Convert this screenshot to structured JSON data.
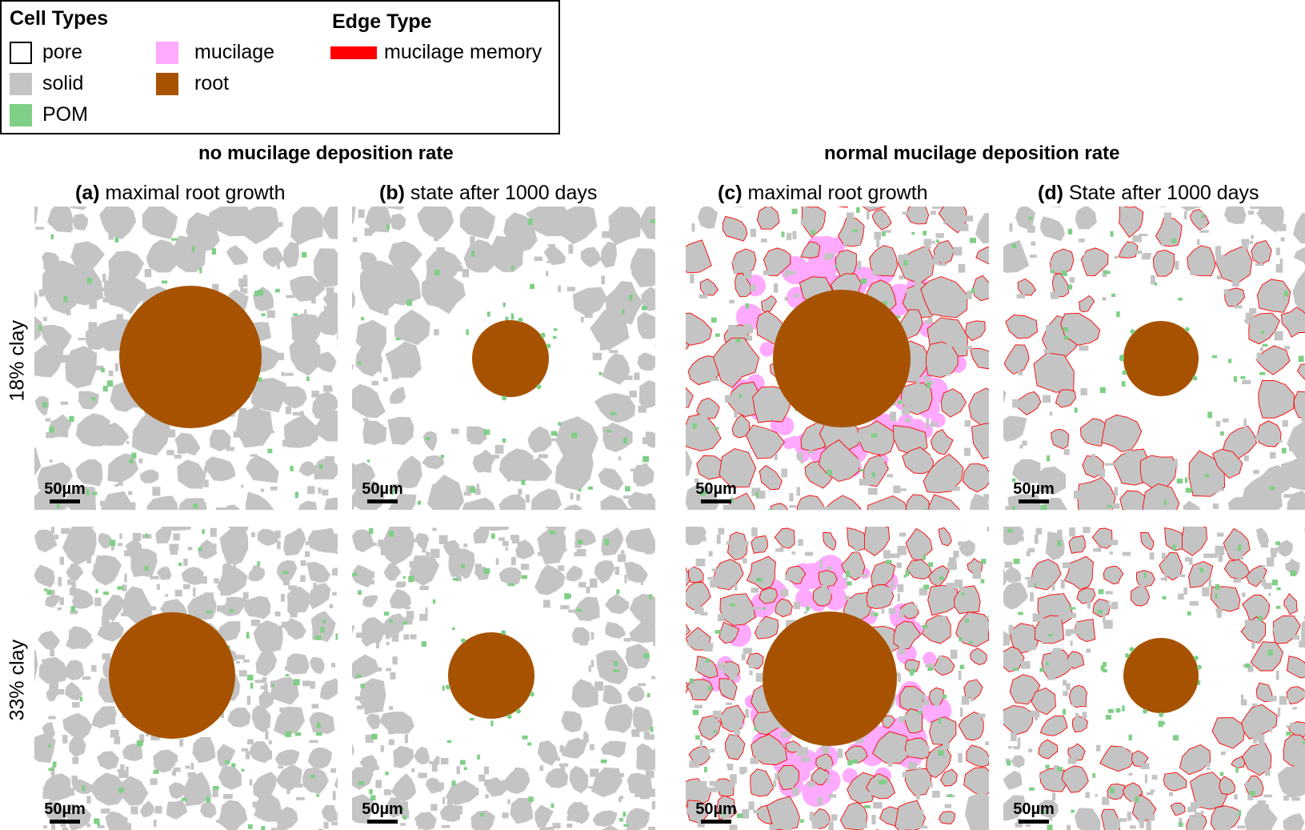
{
  "legend": {
    "cell_types_title": "Cell Types",
    "cell_types": [
      {
        "label": "pore",
        "color": "#ffffff"
      },
      {
        "label": "solid",
        "color": "#c4c4c4"
      },
      {
        "label": "POM",
        "color": "#7fcf86"
      },
      {
        "label": "mucilage",
        "color": "#ffaaff"
      },
      {
        "label": "root",
        "color": "#a75200"
      }
    ],
    "edge_type_title": "Edge Type",
    "edge_types": [
      {
        "label": "mucilage memory",
        "color": "#ff0000"
      }
    ]
  },
  "sections": {
    "left": "no mucilage deposition rate",
    "right": "normal mucilage deposition rate"
  },
  "columns": [
    {
      "letter": "(a)",
      "text": "maximal root growth"
    },
    {
      "letter": "(b)",
      "text": "state after 1000 days"
    },
    {
      "letter": "(c)",
      "text": "maximal root growth"
    },
    {
      "letter": "(d)",
      "text": "State after 1000 days"
    }
  ],
  "rows": [
    {
      "label": "18% clay"
    },
    {
      "label": "33% clay"
    }
  ],
  "scale_label": "50µm",
  "colors": {
    "pore": "#ffffff",
    "solid": "#c4c4c4",
    "pom": "#7fcf86",
    "mucilage": "#ffaaff",
    "root": "#a75200",
    "mucilage_memory": "#ff0000"
  },
  "panels": [
    {
      "column": "a",
      "row": "18% clay",
      "root_radius_um": 89,
      "mucilage": false,
      "pore_ring": false
    },
    {
      "column": "b",
      "row": "18% clay",
      "root_radius_um": 48,
      "mucilage": false,
      "pore_ring": true
    },
    {
      "column": "c",
      "row": "18% clay",
      "root_radius_um": 86,
      "mucilage": true,
      "pore_ring": false
    },
    {
      "column": "d",
      "row": "18% clay",
      "root_radius_um": 47,
      "mucilage": false,
      "pore_ring": true
    },
    {
      "column": "a",
      "row": "33% clay",
      "root_radius_um": 79,
      "mucilage": false,
      "pore_ring": false
    },
    {
      "column": "b",
      "row": "33% clay",
      "root_radius_um": 54,
      "mucilage": false,
      "pore_ring": true
    },
    {
      "column": "c",
      "row": "33% clay",
      "root_radius_um": 84,
      "mucilage": true,
      "pore_ring": false
    },
    {
      "column": "d",
      "row": "33% clay",
      "root_radius_um": 47,
      "mucilage": false,
      "pore_ring": true
    }
  ]
}
